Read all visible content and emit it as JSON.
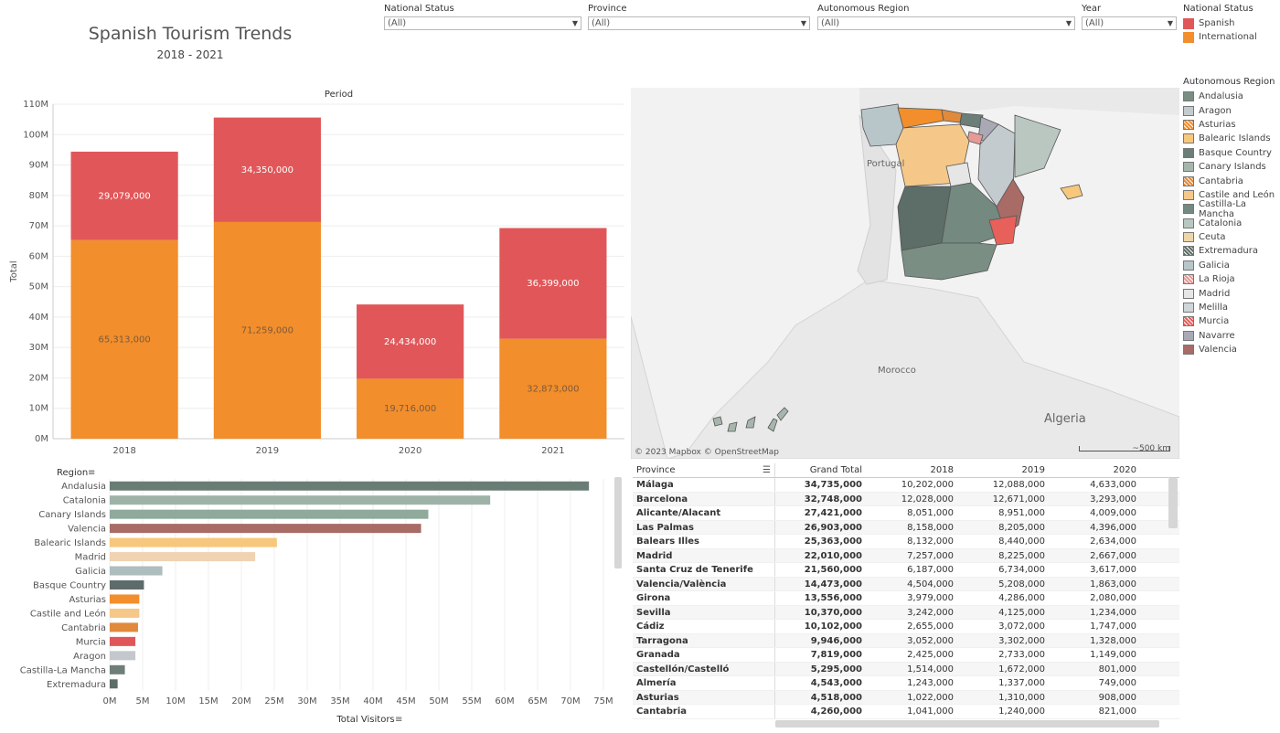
{
  "header": {
    "title": "Spanish Tourism Trends",
    "subtitle": "2018 - 2021"
  },
  "filters": [
    {
      "label": "National Status",
      "value": "(All)"
    },
    {
      "label": "Province",
      "value": "(All)"
    },
    {
      "label": "Autonomous Region",
      "value": "(All)"
    },
    {
      "label": "Year",
      "value": "(All)"
    }
  ],
  "legend_status": {
    "title": "National Status",
    "items": [
      {
        "label": "Spanish",
        "color": "#e15759"
      },
      {
        "label": "International",
        "color": "#f28e2b"
      }
    ]
  },
  "legend_region": {
    "title": "Autonomous Region",
    "items": [
      {
        "label": "Andalusia",
        "color": "#7a8e83",
        "pattern": "solid"
      },
      {
        "label": "Aragon",
        "color": "#c4cbcf",
        "pattern": "solid"
      },
      {
        "label": "Asturias",
        "color": "#f28e2b",
        "pattern": "hatch"
      },
      {
        "label": "Balearic Islands",
        "color": "#f7c77d",
        "pattern": "solid"
      },
      {
        "label": "Basque Country",
        "color": "#6b7e78",
        "pattern": "solid"
      },
      {
        "label": "Canary Islands",
        "color": "#a7b6ad",
        "pattern": "solid"
      },
      {
        "label": "Cantabria",
        "color": "#e08a3c",
        "pattern": "hatch"
      },
      {
        "label": "Castile and León",
        "color": "#f5c88a",
        "pattern": "solid"
      },
      {
        "label": "Castilla-La Mancha",
        "color": "#74897f",
        "pattern": "solid"
      },
      {
        "label": "Catalonia",
        "color": "#b9c7c0",
        "pattern": "solid"
      },
      {
        "label": "Ceuta",
        "color": "#efd6a8",
        "pattern": "solid"
      },
      {
        "label": "Extremadura",
        "color": "#5d6d67",
        "pattern": "hatch"
      },
      {
        "label": "Galicia",
        "color": "#b8c6c9",
        "pattern": "solid"
      },
      {
        "label": "La Rioja",
        "color": "#e59a97",
        "pattern": "hatch"
      },
      {
        "label": "Madrid",
        "color": "#e6e6e6",
        "pattern": "solid"
      },
      {
        "label": "Melilla",
        "color": "#cfd6da",
        "pattern": "solid"
      },
      {
        "label": "Murcia",
        "color": "#e8605a",
        "pattern": "hatch"
      },
      {
        "label": "Navarre",
        "color": "#a9a9b6",
        "pattern": "solid"
      },
      {
        "label": "Valencia",
        "color": "#a86b66",
        "pattern": "solid"
      }
    ]
  },
  "chart_data": [
    {
      "type": "bar",
      "title": "Period",
      "ylabel": "Total",
      "xlabel": "",
      "ylim": [
        0,
        110000000
      ],
      "y_ticks": [
        "0M",
        "10M",
        "20M",
        "30M",
        "40M",
        "50M",
        "60M",
        "70M",
        "80M",
        "90M",
        "100M",
        "110M"
      ],
      "y_tick_values": [
        0,
        10000000,
        20000000,
        30000000,
        40000000,
        50000000,
        60000000,
        70000000,
        80000000,
        90000000,
        100000000,
        110000000
      ],
      "categories": [
        "2018",
        "2019",
        "2020",
        "2021"
      ],
      "stacked": true,
      "series": [
        {
          "name": "International",
          "color": "#f28e2b",
          "values": [
            65313000,
            71259000,
            19716000,
            32873000
          ],
          "labels": [
            "65,313,000",
            "71,259,000",
            "19,716,000",
            "32,873,000"
          ]
        },
        {
          "name": "Spanish",
          "color": "#e15759",
          "values": [
            29079000,
            34350000,
            24434000,
            36399000
          ],
          "labels": [
            "29,079,000",
            "34,350,000",
            "24,434,000",
            "36,399,000"
          ]
        }
      ],
      "grid": true
    },
    {
      "type": "bar",
      "orientation": "horizontal",
      "title": "",
      "ylabel": "Region",
      "xlabel": "Total Visitors",
      "xlim": [
        0,
        75000000
      ],
      "x_ticks": [
        "0M",
        "5M",
        "10M",
        "15M",
        "20M",
        "25M",
        "30M",
        "35M",
        "40M",
        "45M",
        "50M",
        "55M",
        "60M",
        "65M",
        "70M",
        "75M"
      ],
      "x_tick_values": [
        0,
        5000000,
        10000000,
        15000000,
        20000000,
        25000000,
        30000000,
        35000000,
        40000000,
        45000000,
        50000000,
        55000000,
        60000000,
        65000000,
        70000000,
        75000000
      ],
      "categories": [
        "Andalusia",
        "Catalonia",
        "Canary Islands",
        "Valencia",
        "Balearic Islands",
        "Madrid",
        "Galicia",
        "Basque Country",
        "Asturias",
        "Castile and León",
        "Cantabria",
        "Murcia",
        "Aragon",
        "Castilla-La Mancha",
        "Extremadura"
      ],
      "values": [
        72800000,
        57800000,
        48400000,
        47300000,
        25400000,
        22100000,
        8000000,
        5200000,
        4500000,
        4500000,
        4300000,
        3900000,
        3900000,
        2300000,
        1200000
      ],
      "colors": [
        "#6a7d74",
        "#9fb2a8",
        "#8fa99b",
        "#a86b66",
        "#f7c77d",
        "#efd3b2",
        "#aebdbd",
        "#5e6b6b",
        "#f28e2b",
        "#f5c88a",
        "#e08a3c",
        "#e15759",
        "#c4c7cb",
        "#6d7f78",
        "#5d6d67"
      ],
      "grid": true
    }
  ],
  "map": {
    "labels": {
      "portugal": "Portugal",
      "morocco": "Morocco",
      "algeria": "Algeria"
    },
    "attribution": "© 2023 Mapbox  © OpenStreetMap",
    "scale": "~500 km"
  },
  "table": {
    "headers": [
      "Province",
      "Grand Total",
      "2018",
      "2019",
      "2020"
    ],
    "rows": [
      [
        "Málaga",
        "34,735,000",
        "10,202,000",
        "12,088,000",
        "4,633,000"
      ],
      [
        "Barcelona",
        "32,748,000",
        "12,028,000",
        "12,671,000",
        "3,293,000"
      ],
      [
        "Alicante/Alacant",
        "27,421,000",
        "8,051,000",
        "8,951,000",
        "4,009,000"
      ],
      [
        "Las Palmas",
        "26,903,000",
        "8,158,000",
        "8,205,000",
        "4,396,000"
      ],
      [
        "Balears Illes",
        "25,363,000",
        "8,132,000",
        "8,440,000",
        "2,634,000"
      ],
      [
        "Madrid",
        "22,010,000",
        "7,257,000",
        "8,225,000",
        "2,667,000"
      ],
      [
        "Santa Cruz de Tenerife",
        "21,560,000",
        "6,187,000",
        "6,734,000",
        "3,617,000"
      ],
      [
        "Valencia/València",
        "14,473,000",
        "4,504,000",
        "5,208,000",
        "1,863,000"
      ],
      [
        "Girona",
        "13,556,000",
        "3,979,000",
        "4,286,000",
        "2,080,000"
      ],
      [
        "Sevilla",
        "10,370,000",
        "3,242,000",
        "4,125,000",
        "1,234,000"
      ],
      [
        "Cádiz",
        "10,102,000",
        "2,655,000",
        "3,072,000",
        "1,747,000"
      ],
      [
        "Tarragona",
        "9,946,000",
        "3,052,000",
        "3,302,000",
        "1,328,000"
      ],
      [
        "Granada",
        "7,819,000",
        "2,425,000",
        "2,733,000",
        "1,149,000"
      ],
      [
        "Castellón/Castelló",
        "5,295,000",
        "1,514,000",
        "1,672,000",
        "801,000"
      ],
      [
        "Almería",
        "4,543,000",
        "1,243,000",
        "1,337,000",
        "749,000"
      ],
      [
        "Asturias",
        "4,518,000",
        "1,022,000",
        "1,310,000",
        "908,000"
      ],
      [
        "Cantabria",
        "4,260,000",
        "1,041,000",
        "1,240,000",
        "821,000"
      ]
    ]
  }
}
